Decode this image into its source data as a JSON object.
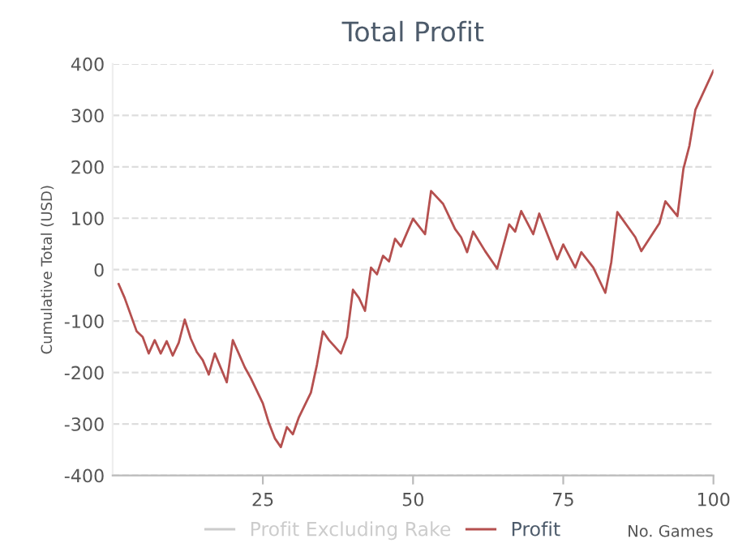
{
  "chart_data": {
    "type": "line",
    "title": "Total Profit",
    "xlabel": "No. Games",
    "ylabel": "Cumulative Total (USD)",
    "xlim": [
      0,
      100
    ],
    "xticks": [
      25,
      50,
      75,
      100
    ],
    "ylim": [
      -400,
      400
    ],
    "yticks": [
      -400,
      -300,
      -200,
      -100,
      0,
      100,
      200,
      300,
      400
    ],
    "grid": "y",
    "legend": "bottom",
    "marker": "none",
    "line_style": "solid",
    "series": [
      {
        "name": "Profit Excluding Rake",
        "color": "#cccccc"
      },
      {
        "name": "Profit",
        "color": "#b5504f",
        "x": [
          1,
          2,
          4,
          5,
          6,
          7,
          8,
          9,
          10,
          11,
          12,
          13,
          14,
          15,
          16,
          17,
          19,
          20,
          22,
          23,
          25,
          26,
          27,
          28,
          29,
          30,
          31,
          33,
          34,
          35,
          36,
          38,
          39,
          40,
          41,
          42,
          43,
          44,
          45,
          46,
          47,
          48,
          50,
          52,
          53,
          55,
          57,
          58,
          59,
          60,
          62,
          64,
          66,
          67,
          68,
          70,
          71,
          74,
          75,
          77,
          78,
          80,
          82,
          83,
          84,
          87,
          88,
          91,
          92,
          94,
          95,
          96,
          97,
          100
        ],
        "values": [
          -28,
          -55,
          -120,
          -131,
          -163,
          -137,
          -163,
          -139,
          -167,
          -142,
          -97,
          -134,
          -160,
          -176,
          -204,
          -163,
          -219,
          -137,
          -190,
          -211,
          -260,
          -298,
          -328,
          -345,
          -306,
          -320,
          -287,
          -239,
          -185,
          -120,
          -137,
          -163,
          -131,
          -39,
          -55,
          -80,
          4,
          -9,
          27,
          16,
          60,
          45,
          99,
          69,
          153,
          128,
          79,
          63,
          34,
          74,
          36,
          2,
          88,
          74,
          114,
          69,
          109,
          20,
          49,
          4,
          34,
          4,
          -45,
          15,
          112,
          63,
          36,
          90,
          133,
          104,
          196,
          241,
          311,
          387
        ]
      }
    ]
  }
}
